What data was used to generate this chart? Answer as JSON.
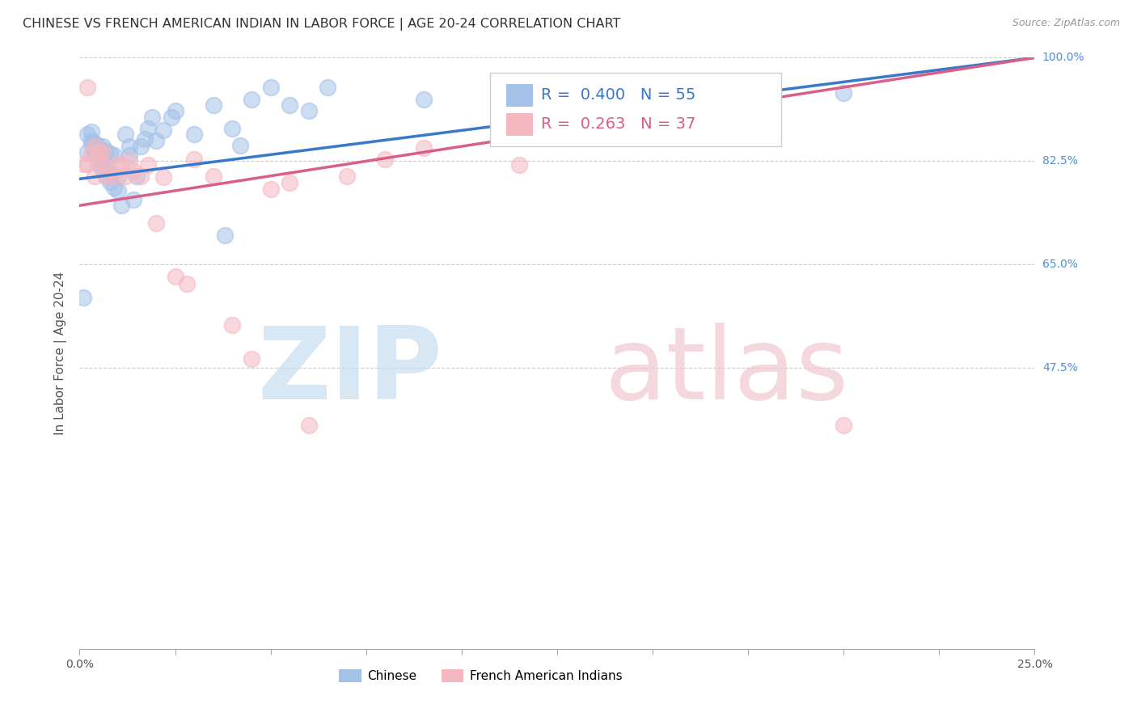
{
  "title": "CHINESE VS FRENCH AMERICAN INDIAN IN LABOR FORCE | AGE 20-24 CORRELATION CHART",
  "source": "Source: ZipAtlas.com",
  "ylabel": "In Labor Force | Age 20-24",
  "xlim": [
    0.0,
    0.25
  ],
  "ylim": [
    0.0,
    1.0
  ],
  "ytick_values": [
    0.0,
    0.475,
    0.65,
    0.825,
    1.0
  ],
  "ytick_labels": [
    "",
    "47.5%",
    "65.0%",
    "82.5%",
    "100.0%"
  ],
  "legend_R1": "0.400",
  "legend_N1": "55",
  "legend_R2": "0.263",
  "legend_N2": "37",
  "chinese_color": "#a4c2e8",
  "french_color": "#f4b8c1",
  "trend_chinese_color": "#3a78c9",
  "trend_french_color": "#d95f8a",
  "chinese_x": [
    0.001,
    0.002,
    0.003,
    0.003,
    0.004,
    0.004,
    0.005,
    0.005,
    0.005,
    0.006,
    0.006,
    0.006,
    0.007,
    0.007,
    0.008,
    0.008,
    0.009,
    0.009,
    0.01,
    0.01,
    0.011,
    0.012,
    0.013,
    0.013,
    0.014,
    0.015,
    0.016,
    0.017,
    0.018,
    0.019,
    0.02,
    0.022,
    0.024,
    0.025,
    0.03,
    0.035,
    0.038,
    0.04,
    0.042,
    0.045,
    0.05,
    0.055,
    0.06,
    0.065,
    0.09,
    0.115,
    0.16,
    0.2,
    0.002,
    0.003,
    0.004,
    0.005,
    0.006,
    0.007,
    0.008
  ],
  "chinese_y": [
    0.595,
    0.87,
    0.855,
    0.875,
    0.84,
    0.855,
    0.82,
    0.835,
    0.85,
    0.81,
    0.83,
    0.85,
    0.8,
    0.815,
    0.79,
    0.805,
    0.78,
    0.835,
    0.775,
    0.8,
    0.75,
    0.87,
    0.835,
    0.85,
    0.76,
    0.8,
    0.85,
    0.862,
    0.88,
    0.9,
    0.86,
    0.878,
    0.9,
    0.91,
    0.87,
    0.92,
    0.7,
    0.88,
    0.852,
    0.93,
    0.95,
    0.92,
    0.91,
    0.95,
    0.93,
    0.88,
    0.96,
    0.94,
    0.84,
    0.86,
    0.84,
    0.842,
    0.84,
    0.842,
    0.838
  ],
  "french_x": [
    0.001,
    0.002,
    0.002,
    0.003,
    0.004,
    0.004,
    0.005,
    0.005,
    0.006,
    0.006,
    0.007,
    0.008,
    0.009,
    0.01,
    0.011,
    0.012,
    0.013,
    0.014,
    0.016,
    0.018,
    0.02,
    0.022,
    0.025,
    0.028,
    0.03,
    0.035,
    0.04,
    0.045,
    0.05,
    0.055,
    0.06,
    0.07,
    0.08,
    0.09,
    0.115,
    0.15,
    0.2
  ],
  "french_y": [
    0.82,
    0.95,
    0.82,
    0.838,
    0.85,
    0.8,
    0.84,
    0.825,
    0.82,
    0.84,
    0.8,
    0.808,
    0.8,
    0.82,
    0.818,
    0.8,
    0.826,
    0.808,
    0.8,
    0.818,
    0.72,
    0.798,
    0.63,
    0.618,
    0.828,
    0.8,
    0.548,
    0.49,
    0.778,
    0.788,
    0.378,
    0.8,
    0.828,
    0.848,
    0.818,
    0.878,
    0.378
  ],
  "trend_chinese_x0": 0.0,
  "trend_chinese_x1": 0.25,
  "trend_chinese_y0": 0.795,
  "trend_chinese_y1": 1.0,
  "trend_french_x0": 0.0,
  "trend_french_x1": 0.25,
  "trend_french_y0": 0.75,
  "trend_french_y1": 1.0,
  "bg_color": "#ffffff",
  "grid_color": "#cccccc",
  "right_label_color": "#4a90d9",
  "title_fontsize": 11.5,
  "label_fontsize": 11,
  "tick_fontsize": 10,
  "source_fontsize": 9,
  "legend_box_color": "#cccccc",
  "watermark_zip_color": "#c8ddf0",
  "watermark_atlas_color": "#f0c8d0"
}
